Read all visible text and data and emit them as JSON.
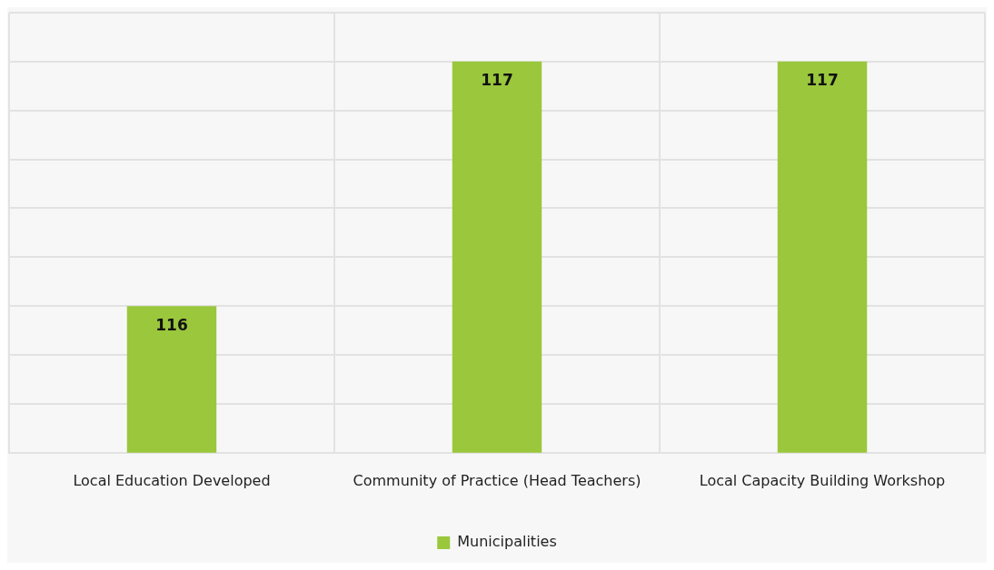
{
  "chart_data": {
    "type": "bar",
    "categories": [
      "Local Education Developed",
      "Community of Practice (Head Teachers)",
      "Local Capacity Building Workshop"
    ],
    "series": [
      {
        "name": "Municipalities",
        "color": "#9ac73c",
        "values": [
          116,
          117,
          117
        ]
      }
    ],
    "ylim": [
      115.4,
      117.2
    ],
    "yticks": [
      {
        "value": 115.4,
        "label": null
      },
      {
        "value": 115.6,
        "label": null
      },
      {
        "value": 115.8,
        "label": null
      },
      {
        "value": 116,
        "label": null
      },
      {
        "value": 116.2,
        "label": null
      },
      {
        "value": 116.4,
        "label": null
      },
      {
        "value": 116.6,
        "label": null
      },
      {
        "value": 116.8,
        "label": null
      },
      {
        "value": 117,
        "label": null
      },
      {
        "value": 117.2,
        "label": null
      }
    ],
    "tick_labels": "x",
    "grid": true,
    "data_labels": true,
    "legend": "bottom"
  }
}
